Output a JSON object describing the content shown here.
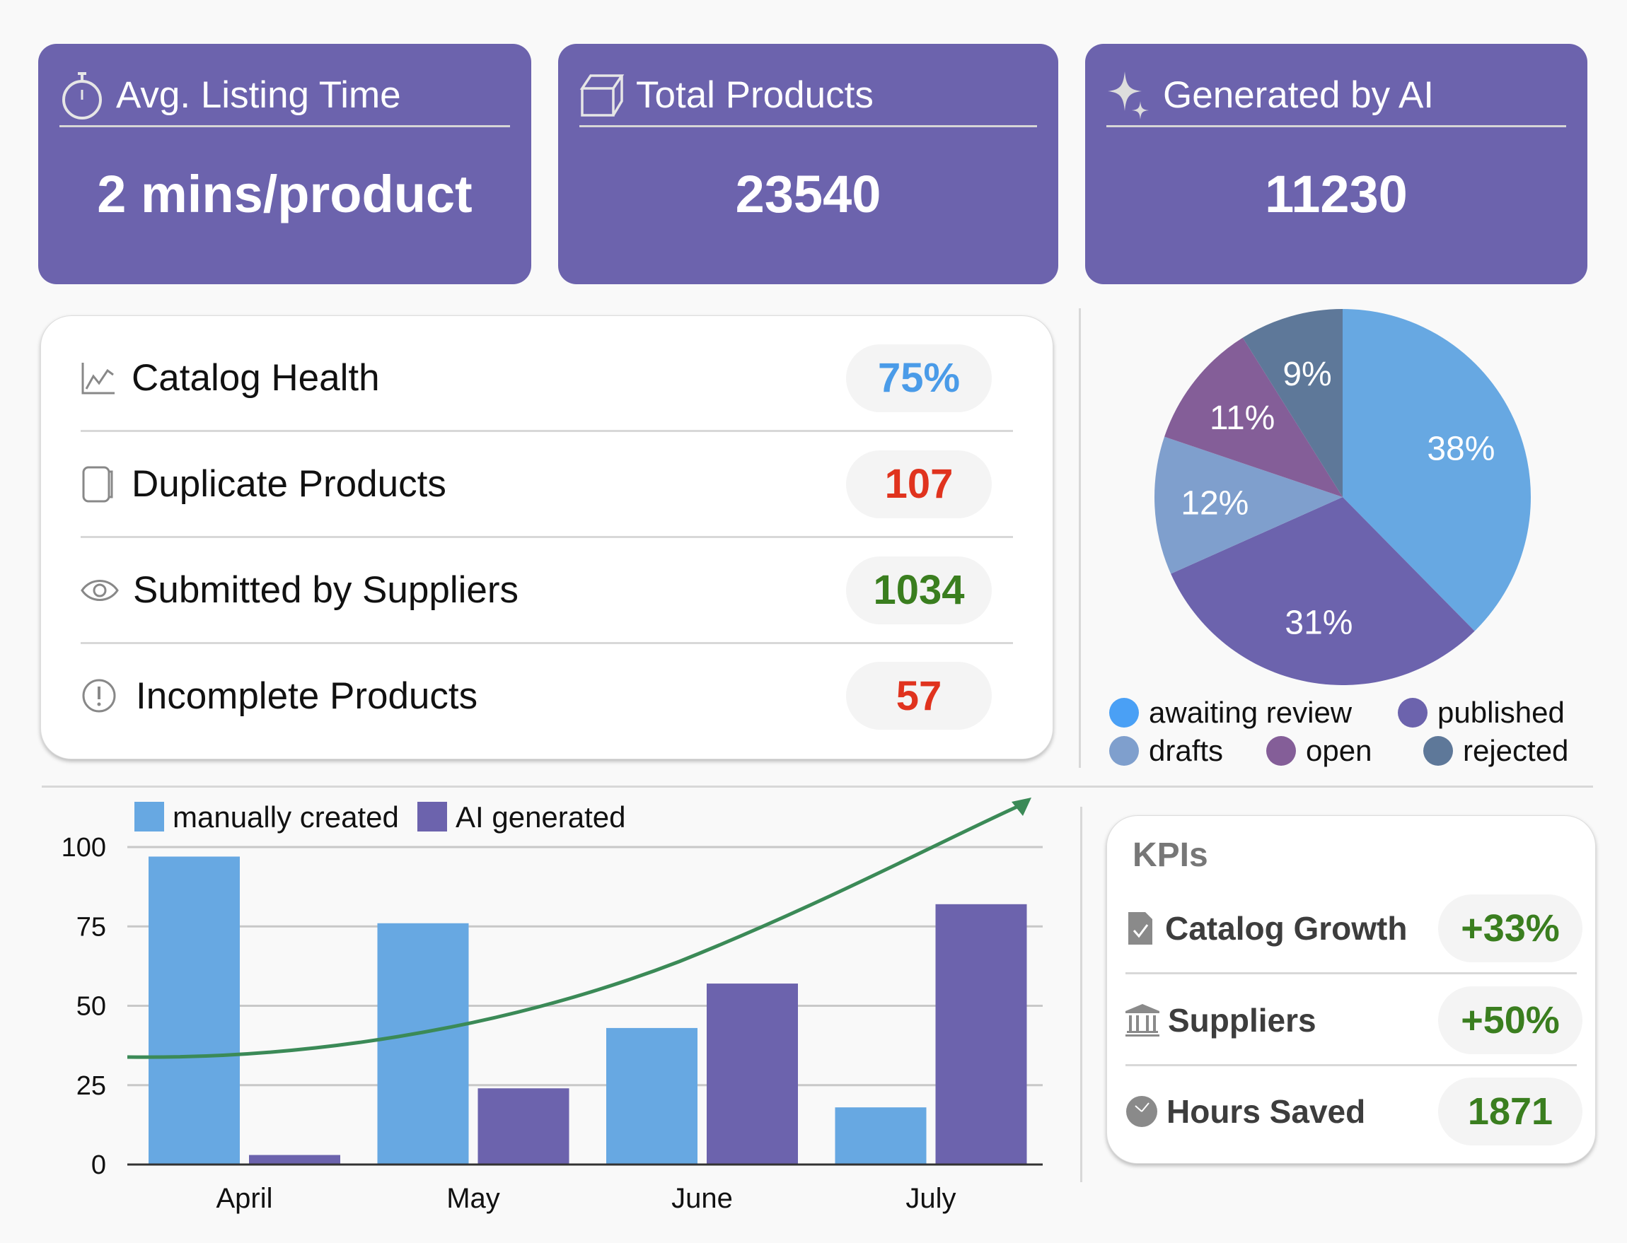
{
  "cards": [
    {
      "title": "Avg. Listing Time",
      "value": "2 mins/product",
      "icon": "stopwatch-icon"
    },
    {
      "title": "Total Products",
      "value": "23540",
      "icon": "box-icon"
    },
    {
      "title": "Generated by AI",
      "value": "11230",
      "icon": "sparkle-icon"
    }
  ],
  "catalog": {
    "rows": [
      {
        "label": "Catalog Health",
        "value": "75%",
        "color": "#4a9be8",
        "icon": "line-chart-icon"
      },
      {
        "label": "Duplicate Products",
        "value": "107",
        "color": "#e0331e",
        "icon": "duplicate-icon"
      },
      {
        "label": "Submitted by Suppliers",
        "value": "1034",
        "color": "#3a7e1f",
        "icon": "eye-icon"
      },
      {
        "label": "Incomplete Products",
        "value": "57",
        "color": "#e0331e",
        "icon": "alert-circle-icon"
      }
    ]
  },
  "chart_data": [
    {
      "type": "pie",
      "slices": [
        {
          "name": "awaiting review",
          "value": 38,
          "label": "38%",
          "color": "#67a8e2",
          "legend_color": "#4aa0f5"
        },
        {
          "name": "published",
          "value": 31,
          "label": "31%",
          "color": "#6c63ad",
          "legend_color": "#6c63ad"
        },
        {
          "name": "drafts",
          "value": 12,
          "label": "12%",
          "color": "#7f9fcd",
          "legend_color": "#7f9fcd"
        },
        {
          "name": "open",
          "value": 11,
          "label": "11%",
          "color": "#845e98",
          "legend_color": "#845e98"
        },
        {
          "name": "rejected",
          "value": 9,
          "label": "9%",
          "color": "#5e7899",
          "legend_color": "#5e7899"
        }
      ],
      "legend": "bottom"
    },
    {
      "type": "bar",
      "categories": [
        "April",
        "May",
        "June",
        "July"
      ],
      "series": [
        {
          "name": "manually created",
          "values": [
            97,
            76,
            43,
            18
          ],
          "color": "#67a8e2"
        },
        {
          "name": "AI generated",
          "values": [
            3,
            24,
            57,
            82
          ],
          "color": "#6c63ad"
        }
      ],
      "ylim": [
        0,
        100
      ],
      "yticks": [
        "0",
        "25",
        "50",
        "75",
        "100"
      ],
      "grid": true,
      "legend": "top-left",
      "annotation": {
        "type": "trend-arrow",
        "color": "#3b8a57"
      }
    }
  ],
  "kpis": {
    "title": "KPIs",
    "rows": [
      {
        "label": "Catalog Growth",
        "value": "+33%",
        "icon": "document-check-icon"
      },
      {
        "label": "Suppliers",
        "value": "+50%",
        "icon": "bank-icon"
      },
      {
        "label": "Hours Saved",
        "value": "1871",
        "icon": "clock-icon"
      }
    ]
  }
}
